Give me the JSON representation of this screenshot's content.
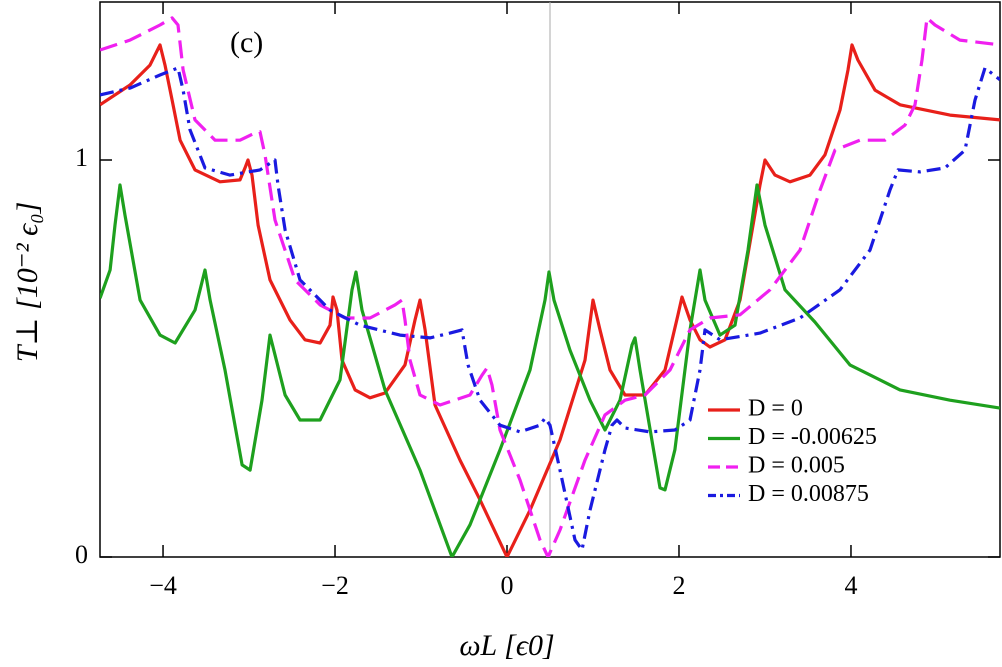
{
  "chart_data": {
    "type": "line",
    "annotation": "(c)",
    "xlabel": "ωL [ϵ0]",
    "ylabel": "T⊥ [10⁻² ϵ₀]",
    "xlim": [
      -4.733,
      5.733
    ],
    "ylim": [
      0,
      1.398
    ],
    "xticks": [
      {
        "value": -4,
        "label": "−4"
      },
      {
        "value": -2,
        "label": "−2"
      },
      0,
      2,
      4
    ],
    "yticks": [
      0,
      1
    ],
    "vline": 0.5,
    "legend": "lower-right",
    "series": [
      {
        "name": "D = 0",
        "color": "#e8201a",
        "dash": "solid",
        "x": [
          -4.733,
          -4.384,
          -4.151,
          -4.035,
          -3.977,
          -3.895,
          -3.802,
          -3.628,
          -3.337,
          -3.105,
          -3.047,
          -3.012,
          -2.965,
          -2.895,
          -2.756,
          -2.523,
          -2.349,
          -2.174,
          -2.058,
          -2.023,
          -1.977,
          -1.919,
          -1.767,
          -1.593,
          -1.419,
          -1.186,
          -1.07,
          -1.012,
          -0.953,
          -0.837,
          -0.547,
          -0.314,
          0,
          0.267,
          0.616,
          0.907,
          1.0,
          1.081,
          1.198,
          1.372,
          1.605,
          1.837,
          1.988,
          2.035,
          2.128,
          2.244,
          2.36,
          2.535,
          2.709,
          2.942,
          3.0,
          3.116,
          3.291,
          3.523,
          3.698,
          3.872,
          3.965,
          4.012,
          4.081,
          4.279,
          4.57,
          5.151,
          5.733
        ],
        "values": [
          1.139,
          1.189,
          1.239,
          1.29,
          1.239,
          1.151,
          1.05,
          0.975,
          0.945,
          0.95,
          0.98,
          1.0,
          0.962,
          0.836,
          0.698,
          0.597,
          0.547,
          0.539,
          0.584,
          0.655,
          0.622,
          0.496,
          0.421,
          0.401,
          0.413,
          0.484,
          0.597,
          0.647,
          0.572,
          0.383,
          0.244,
          0.144,
          0,
          0.118,
          0.295,
          0.496,
          0.647,
          0.572,
          0.471,
          0.408,
          0.408,
          0.471,
          0.61,
          0.655,
          0.597,
          0.547,
          0.529,
          0.547,
          0.647,
          0.937,
          1.0,
          0.962,
          0.945,
          0.962,
          1.013,
          1.126,
          1.227,
          1.29,
          1.252,
          1.176,
          1.139,
          1.113,
          1.101
        ]
      },
      {
        "name": "D = -0.00625",
        "color": "#1ea01e",
        "dash": "solid",
        "x": [
          -4.733,
          -4.616,
          -4.558,
          -4.5,
          -4.442,
          -4.267,
          -4.035,
          -3.86,
          -3.628,
          -3.512,
          -3.453,
          -3.279,
          -3.081,
          -2.988,
          -2.849,
          -2.756,
          -2.698,
          -2.581,
          -2.407,
          -2.174,
          -1.942,
          -1.802,
          -1.756,
          -1.686,
          -1.419,
          -1.012,
          -0.64,
          -0.43,
          -0.081,
          0.267,
          0.442,
          0.488,
          0.547,
          0.733,
          0.965,
          1.14,
          1.314,
          1.453,
          1.488,
          1.547,
          1.779,
          1.837,
          1.953,
          2.128,
          2.244,
          2.302,
          2.477,
          2.651,
          2.802,
          2.907,
          3.0,
          3.233,
          3.581,
          3.988,
          4.57,
          5.151,
          5.733
        ],
        "values": [
          0.652,
          0.723,
          0.836,
          0.937,
          0.861,
          0.647,
          0.559,
          0.539,
          0.622,
          0.723,
          0.647,
          0.471,
          0.232,
          0.219,
          0.395,
          0.559,
          0.509,
          0.408,
          0.345,
          0.345,
          0.446,
          0.673,
          0.718,
          0.622,
          0.421,
          0.219,
          0,
          0.081,
          0.27,
          0.471,
          0.647,
          0.718,
          0.647,
          0.521,
          0.395,
          0.32,
          0.395,
          0.534,
          0.552,
          0.471,
          0.174,
          0.169,
          0.27,
          0.572,
          0.723,
          0.647,
          0.559,
          0.584,
          0.773,
          0.937,
          0.836,
          0.673,
          0.592,
          0.484,
          0.421,
          0.395,
          0.375
        ]
      },
      {
        "name": "D = 0.005",
        "color": "#f020f0",
        "dash": "dashed",
        "x": [
          -4.733,
          -4.384,
          -4.035,
          -3.895,
          -3.826,
          -3.767,
          -3.628,
          -3.395,
          -3.105,
          -2.93,
          -2.872,
          -2.814,
          -2.698,
          -2.465,
          -2.174,
          -1.884,
          -1.593,
          -1.302,
          -1.221,
          -1.186,
          -1.128,
          -1.012,
          -0.779,
          -0.43,
          -0.291,
          -0.233,
          -0.174,
          -0.081,
          0.151,
          0.384,
          0.477,
          0.616,
          0.907,
          1.14,
          1.372,
          1.605,
          1.895,
          2.128,
          2.36,
          2.709,
          3.058,
          3.407,
          3.64,
          3.814,
          4.105,
          4.395,
          4.628,
          4.744,
          4.826,
          4.884,
          4.977,
          5.267,
          5.733
        ],
        "values": [
          1.277,
          1.302,
          1.34,
          1.358,
          1.34,
          1.227,
          1.101,
          1.05,
          1.05,
          1.068,
          1.071,
          1.013,
          0.849,
          0.698,
          0.635,
          0.602,
          0.602,
          0.635,
          0.647,
          0.597,
          0.496,
          0.408,
          0.383,
          0.408,
          0.458,
          0.476,
          0.433,
          0.32,
          0.194,
          0.043,
          0,
          0.068,
          0.244,
          0.358,
          0.395,
          0.408,
          0.471,
          0.572,
          0.602,
          0.61,
          0.673,
          0.773,
          0.924,
          1.025,
          1.05,
          1.05,
          1.088,
          1.139,
          1.252,
          1.358,
          1.34,
          1.302,
          1.29
        ]
      },
      {
        "name": "D = 0.00875",
        "color": "#1a1ae0",
        "dash": "dash-dot",
        "x": [
          -4.733,
          -4.384,
          -4.035,
          -3.826,
          -3.767,
          -3.686,
          -3.512,
          -3.221,
          -2.872,
          -2.698,
          -2.663,
          -2.581,
          -2.407,
          -2.058,
          -1.709,
          -1.244,
          -0.895,
          -0.663,
          -0.523,
          -0.453,
          -0.314,
          -0.081,
          0.151,
          0.384,
          0.442,
          0.5,
          0.616,
          0.791,
          0.872,
          0.965,
          1.14,
          1.221,
          1.279,
          1.372,
          1.663,
          1.953,
          2.128,
          2.244,
          2.302,
          2.477,
          2.942,
          3.407,
          3.872,
          4.221,
          4.453,
          4.547,
          4.802,
          5.093,
          5.326,
          5.442,
          5.558,
          5.733
        ],
        "values": [
          1.164,
          1.181,
          1.214,
          1.232,
          1.176,
          1.076,
          0.98,
          0.962,
          0.975,
          1.0,
          0.937,
          0.824,
          0.698,
          0.622,
          0.584,
          0.559,
          0.552,
          0.564,
          0.572,
          0.484,
          0.395,
          0.332,
          0.315,
          0.332,
          0.35,
          0.332,
          0.219,
          0.043,
          0.018,
          0.118,
          0.27,
          0.332,
          0.345,
          0.325,
          0.315,
          0.32,
          0.345,
          0.471,
          0.572,
          0.547,
          0.564,
          0.602,
          0.673,
          0.773,
          0.924,
          0.975,
          0.97,
          0.98,
          1.025,
          1.151,
          1.232,
          1.202
        ]
      }
    ]
  }
}
